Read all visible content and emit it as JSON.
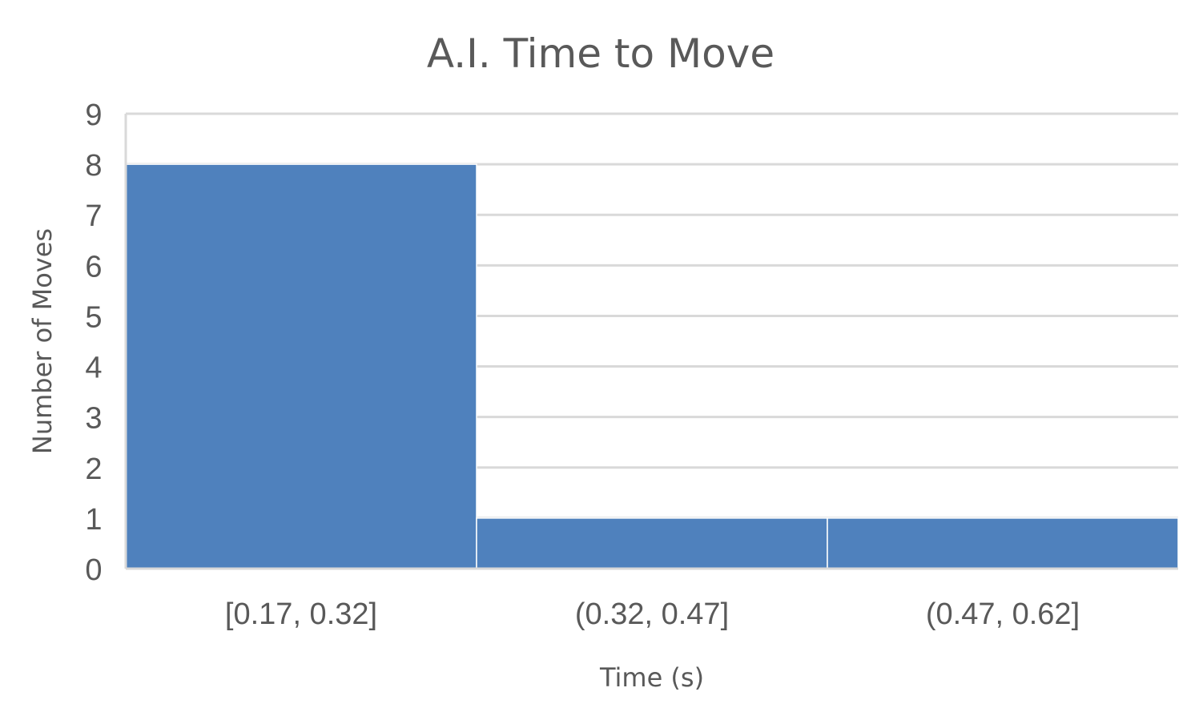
{
  "chart_data": {
    "type": "bar",
    "title": "A.I. Time to Move",
    "xlabel": "Time (s)",
    "ylabel": "Number of Moves",
    "categories": [
      "[0.17, 0.32]",
      "(0.32, 0.47]",
      "(0.47, 0.62]"
    ],
    "values": [
      8,
      1,
      1
    ],
    "ylim": [
      0,
      9
    ],
    "yticks": [
      "0",
      "1",
      "2",
      "3",
      "4",
      "5",
      "6",
      "7",
      "8",
      "9"
    ],
    "grid": true,
    "bar_color": "#4f81bd",
    "grid_color": "#d9d9d9",
    "text_color": "#595959"
  }
}
